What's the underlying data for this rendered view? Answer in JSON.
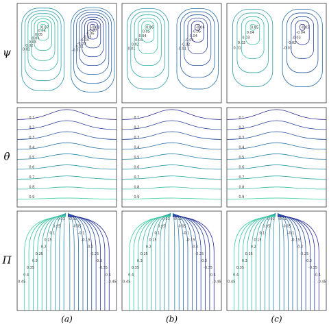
{
  "figure": {
    "columns": [
      "(a)",
      "(b)",
      "(c)"
    ],
    "rows": [
      {
        "symbol": "ψ",
        "panels": [
          {
            "levels": [
              0.01,
              0.02,
              0.03,
              0.04,
              0.05,
              0.06,
              0.07,
              -0.01,
              -0.02,
              -0.03,
              -0.04,
              -0.05,
              -0.06,
              -0.07,
              -0.08
            ]
          },
          {
            "levels": [
              0.01,
              0.02,
              0.03,
              0.04,
              0.05,
              0.06,
              -0.01,
              -0.02,
              -0.03,
              -0.04,
              -0.05,
              -0.06
            ]
          },
          {
            "levels": [
              0.01,
              0.02,
              0.03,
              0.04,
              0.05,
              -0.01,
              -0.02,
              -0.03,
              -0.04,
              -0.05
            ]
          }
        ]
      },
      {
        "symbol": "θ",
        "panels": [
          {
            "levels": [
              0.1,
              0.2,
              0.3,
              0.4,
              0.5,
              0.6,
              0.7,
              0.8,
              0.9
            ]
          },
          {
            "levels": [
              0.1,
              0.2,
              0.3,
              0.4,
              0.5,
              0.6,
              0.7,
              0.8,
              0.9
            ]
          },
          {
            "levels": [
              0.1,
              0.2,
              0.3,
              0.4,
              0.5,
              0.6,
              0.7,
              0.8,
              0.9
            ]
          }
        ]
      },
      {
        "symbol": "Π",
        "panels": [
          {
            "levels": [
              0.01,
              0.05,
              0.1,
              0.15,
              0.2,
              0.25,
              0.3,
              0.35,
              0.4,
              0.45,
              -0.01,
              -0.05,
              -0.1,
              -0.15,
              -0.2,
              -0.25,
              -0.3,
              -0.35,
              -0.4,
              -0.45
            ]
          },
          {
            "levels": [
              0.01,
              0.05,
              0.1,
              0.15,
              0.2,
              0.25,
              0.3,
              0.35,
              0.4,
              0.45,
              -0.01,
              -0.05,
              -0.1,
              -0.15,
              -0.2,
              -0.25,
              -0.3,
              -0.35,
              -0.4,
              -0.45
            ]
          },
          {
            "levels": [
              0.01,
              0.05,
              0.1,
              0.15,
              0.2,
              0.25,
              0.3,
              0.35,
              0.4,
              0.45,
              -0.01,
              -0.05,
              -0.1,
              -0.15,
              -0.2,
              -0.25,
              -0.3,
              -0.35,
              -0.4,
              -0.45
            ]
          }
        ]
      }
    ]
  }
}
